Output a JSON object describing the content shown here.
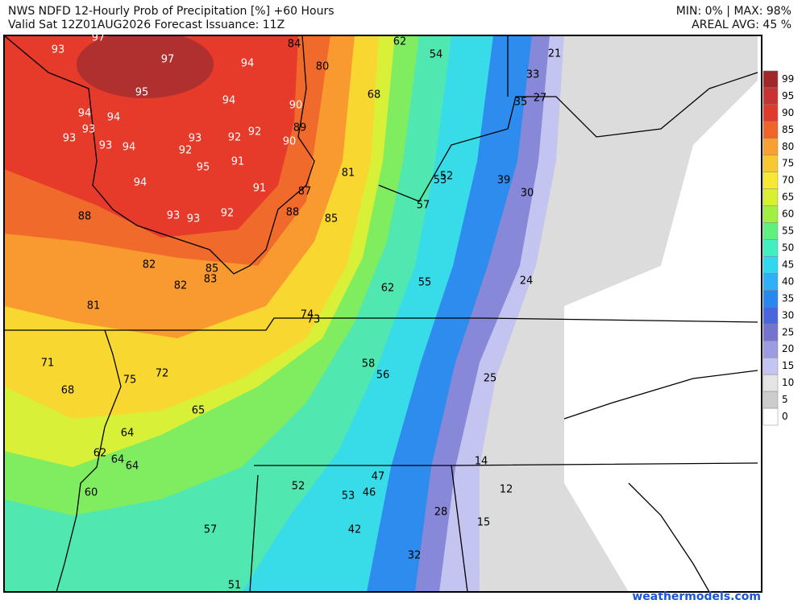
{
  "header": {
    "title": "NWS NDFD 12-Hourly Prob of Precipitation [%] +60 Hours",
    "valid": "Valid Sat 12Z01AUG2026   Forecast Issuance: 11Z",
    "minmax": "MIN: 0% | MAX: 98%",
    "areal_avg": "AREAL AVG: 45 %"
  },
  "colorbar": {
    "ticks": [
      99,
      95,
      90,
      85,
      80,
      75,
      70,
      65,
      60,
      55,
      50,
      45,
      40,
      35,
      30,
      25,
      20,
      15,
      10,
      5,
      0
    ],
    "colors": [
      "#a02828",
      "#c83232",
      "#e23a2a",
      "#f06428",
      "#f8a030",
      "#f8c830",
      "#f8e830",
      "#d8f030",
      "#a0f040",
      "#60f080",
      "#40f0c0",
      "#30d8f0",
      "#30b0f8",
      "#2888f0",
      "#4a66dc",
      "#7474d0",
      "#9c9ce2",
      "#c4c4f0",
      "#e4e4e4",
      "#cccccc",
      "#ffffff"
    ]
  },
  "map_labels": [
    97,
    93,
    97,
    94,
    84,
    62,
    54,
    21,
    80,
    33,
    95,
    94,
    90,
    68,
    35,
    27,
    94,
    94,
    93,
    93,
    93,
    94,
    93,
    92,
    92,
    89,
    90,
    92,
    91,
    95,
    81,
    52,
    53,
    39,
    30,
    94,
    91,
    87,
    57,
    88,
    93,
    93,
    92,
    88,
    85,
    82,
    85,
    83,
    82,
    62,
    55,
    24,
    81,
    74,
    73,
    71,
    58,
    56,
    72,
    75,
    25,
    68,
    65,
    64,
    62,
    64,
    64,
    14,
    47,
    52,
    12,
    60,
    53,
    46,
    28,
    15,
    57,
    42,
    32,
    51
  ],
  "credit": "weathermodels.com"
}
